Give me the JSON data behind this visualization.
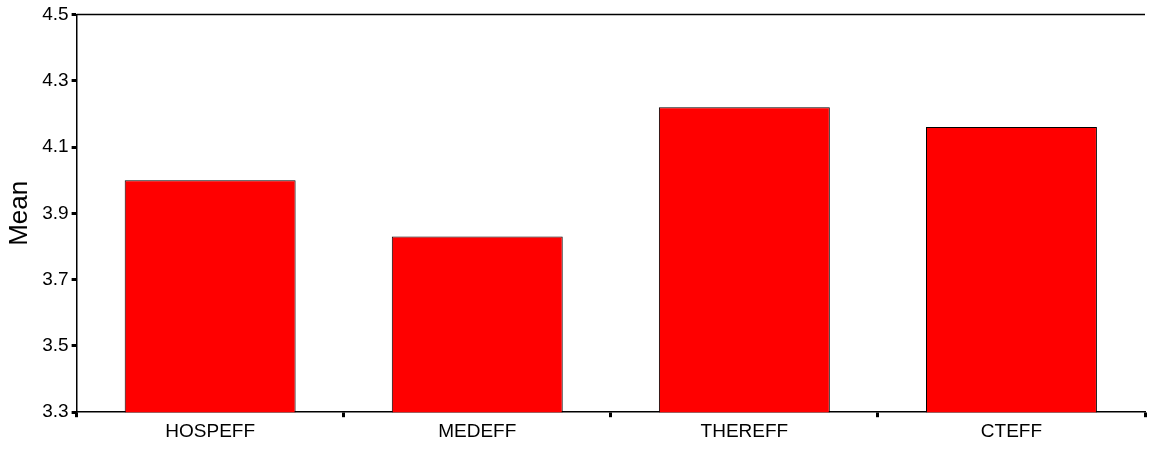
{
  "chart_data": {
    "type": "bar",
    "ylabel": "Mean",
    "categories": [
      "HOSPEFF",
      "MEDEFF",
      "THEREFF",
      "CTEFF"
    ],
    "values": [
      4.0,
      3.83,
      4.22,
      4.16
    ],
    "color": "#ff0000",
    "ylim": [
      3.3,
      4.5
    ],
    "yticks": [
      3.3,
      3.5,
      3.7,
      3.9,
      4.1,
      4.3,
      4.5
    ],
    "grid": false,
    "legend": false
  }
}
